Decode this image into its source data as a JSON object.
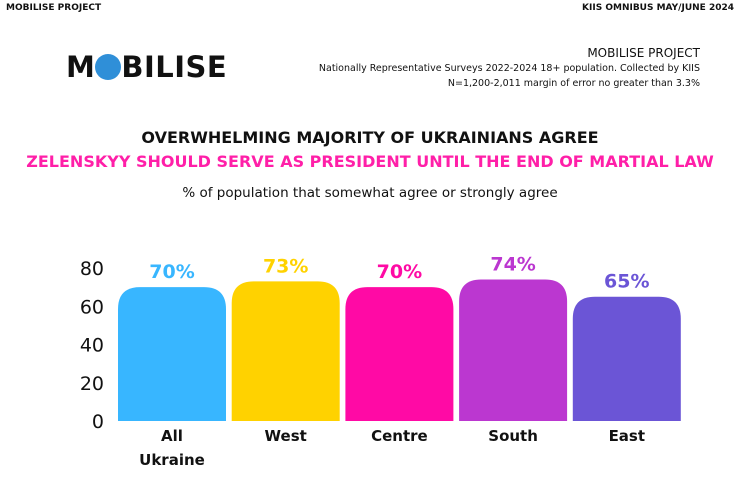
{
  "header": {
    "left": "MOBILISE PROJECT",
    "right": "KIIS OMNIBUS MAY/JUNE 2024"
  },
  "logo": {
    "text": "MOBILISE"
  },
  "meta": {
    "title": "MOBILISE PROJECT",
    "line1": "Nationally Representative Surveys 2022-2024 18+ population. Collected by KIIS",
    "line2": "N=1,200-2,011 margin of error no greater than 3.3%"
  },
  "chart_data": {
    "type": "bar",
    "title": "OVERWHELMING MAJORITY OF UKRAINIANS AGREE",
    "subtitle": "ZELENSKYY SHOULD SERVE AS PRESIDENT UNTIL THE END OF MARTIAL LAW",
    "ylabel": "% of population that somewhat agree or strongly agree",
    "categories": [
      "All Ukraine",
      "West",
      "Centre",
      "South",
      "East"
    ],
    "values": [
      70,
      73,
      70,
      74,
      65
    ],
    "data_labels": [
      "70%",
      "73%",
      "70%",
      "74%",
      "65%"
    ],
    "colors": [
      "#38b6ff",
      "#ffd200",
      "#ff0aa5",
      "#bb37d0",
      "#6b55d6"
    ],
    "yticks": [
      0,
      20,
      40,
      60,
      80
    ],
    "ylim": [
      0,
      80
    ],
    "grid": false
  }
}
